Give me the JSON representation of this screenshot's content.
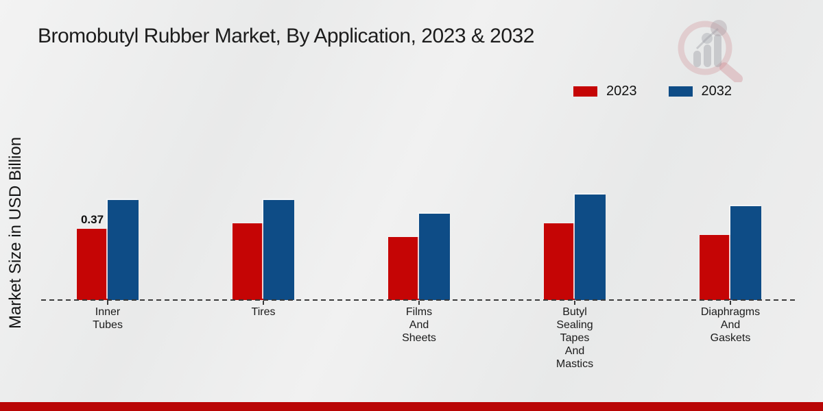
{
  "page": {
    "title": "Bromobutyl Rubber Market, By Application, 2023 & 2032"
  },
  "colors": {
    "series_2023": "#c50505",
    "series_2032": "#0e4c86",
    "footer_bar": "#b90606",
    "background": "#ececec",
    "axis_line": "#3a3a3a",
    "text": "#1c1c1c"
  },
  "watermark": {
    "name": "market-research-logo-watermark",
    "ring_color": "#d9a9ae",
    "bars_color": "#b9bac0"
  },
  "chart_data": {
    "type": "bar",
    "title": "Bromobutyl Rubber Market, By Application, 2023 & 2032",
    "xlabel": "",
    "ylabel": "Market Size in USD Billion",
    "ylim": [
      0,
      0.62
    ],
    "grid": false,
    "legend_position": "top-right",
    "baseline_value": 0,
    "categories": [
      "Inner Tubes",
      "Tires",
      "Films And Sheets",
      "Butyl Sealing Tapes And Mastics",
      "Diaphragms And Gaskets"
    ],
    "category_label_lines": [
      [
        "Inner",
        "Tubes"
      ],
      [
        "Tires"
      ],
      [
        "Films",
        "And",
        "Sheets"
      ],
      [
        "Butyl",
        "Sealing",
        "Tapes",
        "And",
        "Mastics"
      ],
      [
        "Diaphragms",
        "And",
        "Gaskets"
      ]
    ],
    "series": [
      {
        "name": "2023",
        "color": "#c50505",
        "values": [
          0.37,
          0.4,
          0.33,
          0.4,
          0.34
        ]
      },
      {
        "name": "2032",
        "color": "#0e4c86",
        "values": [
          0.52,
          0.52,
          0.45,
          0.55,
          0.49
        ]
      }
    ],
    "bar_labels": [
      {
        "series": 0,
        "index": 0,
        "text": "0.37"
      }
    ]
  }
}
